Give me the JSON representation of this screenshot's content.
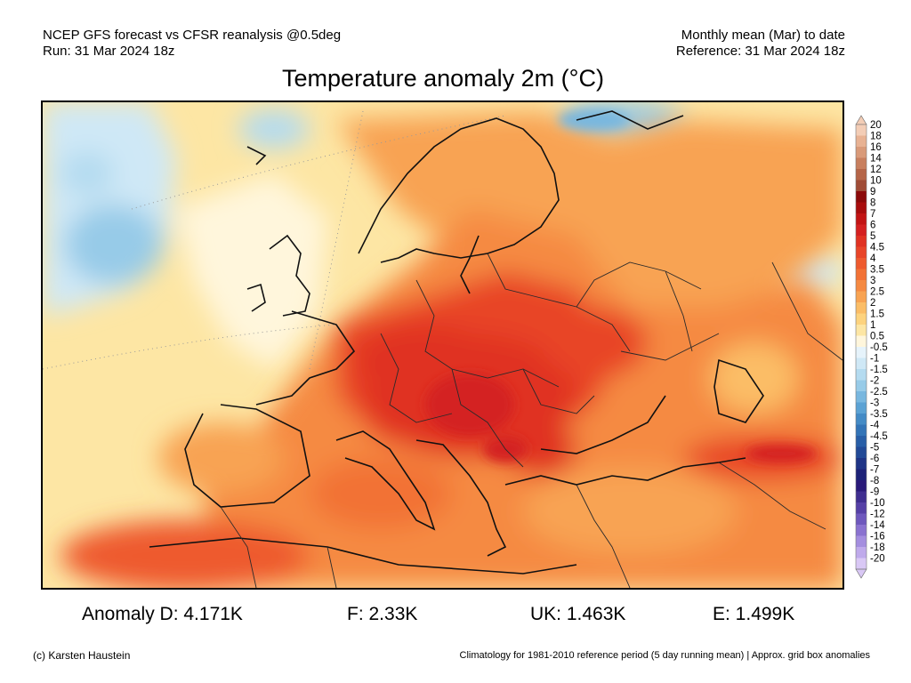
{
  "header": {
    "line1_left": "NCEP GFS forecast vs CFSR reanalysis @0.5deg",
    "line2_left": "Run: 31 Mar 2024 18z",
    "line1_right": "Monthly mean (Mar) to date",
    "line2_right": "Reference: 31 Mar 2024 18z"
  },
  "title": "Temperature anomaly 2m (°C)",
  "colorbar": {
    "levels": [
      "20",
      "18",
      "16",
      "14",
      "12",
      "10",
      "9",
      "8",
      "7",
      "6",
      "5",
      "4.5",
      "4",
      "3.5",
      "3",
      "2.5",
      "2",
      "1.5",
      "1",
      "0.5",
      "-0.5",
      "-1",
      "-1.5",
      "-2",
      "-2.5",
      "-3",
      "-3.5",
      "-4",
      "-4.5",
      "-5",
      "-6",
      "-7",
      "-8",
      "-9",
      "-10",
      "-12",
      "-14",
      "-16",
      "-18",
      "-20"
    ],
    "colors": [
      "#f3cdb6",
      "#e8b293",
      "#d99a79",
      "#c87f5e",
      "#b56548",
      "#a04c36",
      "#8c0a0a",
      "#a80d0d",
      "#c21414",
      "#d42020",
      "#e03222",
      "#e84528",
      "#ee5a2e",
      "#f27236",
      "#f58a42",
      "#f8a352",
      "#fbbd66",
      "#fdd37e",
      "#fde6a4",
      "#fff6dc",
      "#e6f3fb",
      "#cfe8f6",
      "#b4dbf0",
      "#97cbe8",
      "#78b7df",
      "#5ba2d4",
      "#448bc6",
      "#3374b7",
      "#285ea7",
      "#224a97",
      "#1f3486",
      "#1d2278",
      "#2a1a7a",
      "#3f2e90",
      "#5540a6",
      "#6e58bd",
      "#8a72d0",
      "#a48edf",
      "#bfaaeb",
      "#d9c8f5"
    ]
  },
  "stats": {
    "d": "Anomaly D: 4.171K",
    "f": "F: 2.33K",
    "uk": "UK: 1.463K",
    "e": "E: 1.499K"
  },
  "footer": {
    "credit": "(c) Karsten Haustein",
    "note": "Climatology for 1981-2010 reference period (5 day running mean) | Approx. grid box anomalies"
  }
}
